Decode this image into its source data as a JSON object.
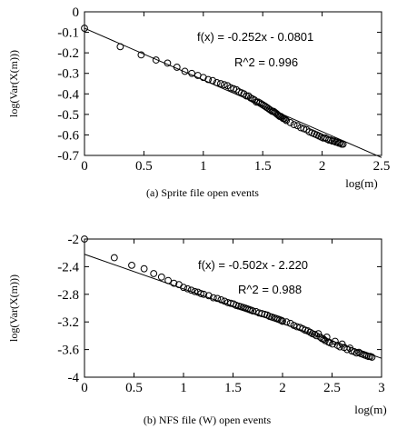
{
  "chart_data": [
    {
      "type": "scatter",
      "caption": "(a) Sprite file open events",
      "xlabel": "log(m)",
      "ylabel": "log(Var(X(m)))",
      "xlim": [
        0,
        2.5
      ],
      "ylim": [
        -0.7,
        0
      ],
      "xticks": [
        "0",
        "0.5",
        "1",
        "1.5",
        "2",
        "2.5"
      ],
      "yticks": [
        "0",
        "-0.1",
        "-0.2",
        "-0.3",
        "-0.4",
        "-0.5",
        "-0.6",
        "-0.7"
      ],
      "fit_label": "f(x) = -0.252x - 0.0801",
      "r2_label": "R^2 = 0.996",
      "fit": {
        "slope": -0.252,
        "intercept": -0.0801
      },
      "marker": "open-circle",
      "points": [
        [
          0,
          -0.08
        ],
        [
          0.301,
          -0.17
        ],
        [
          0.477,
          -0.21
        ],
        [
          0.602,
          -0.235
        ],
        [
          0.699,
          -0.25
        ],
        [
          0.778,
          -0.27
        ],
        [
          0.845,
          -0.29
        ],
        [
          0.903,
          -0.3
        ],
        [
          0.954,
          -0.31
        ],
        [
          1.0,
          -0.32
        ],
        [
          1.041,
          -0.33
        ],
        [
          1.079,
          -0.335
        ],
        [
          1.114,
          -0.345
        ],
        [
          1.146,
          -0.35
        ],
        [
          1.176,
          -0.355
        ],
        [
          1.204,
          -0.36
        ],
        [
          1.23,
          -0.37
        ],
        [
          1.255,
          -0.375
        ],
        [
          1.279,
          -0.38
        ],
        [
          1.301,
          -0.39
        ],
        [
          1.322,
          -0.395
        ],
        [
          1.342,
          -0.4
        ],
        [
          1.362,
          -0.41
        ],
        [
          1.38,
          -0.41
        ],
        [
          1.398,
          -0.42
        ],
        [
          1.415,
          -0.425
        ],
        [
          1.431,
          -0.43
        ],
        [
          1.447,
          -0.44
        ],
        [
          1.462,
          -0.44
        ],
        [
          1.477,
          -0.445
        ],
        [
          1.491,
          -0.45
        ],
        [
          1.505,
          -0.455
        ],
        [
          1.519,
          -0.46
        ],
        [
          1.531,
          -0.465
        ],
        [
          1.544,
          -0.47
        ],
        [
          1.556,
          -0.475
        ],
        [
          1.568,
          -0.48
        ],
        [
          1.58,
          -0.485
        ],
        [
          1.591,
          -0.485
        ],
        [
          1.602,
          -0.49
        ],
        [
          1.613,
          -0.495
        ],
        [
          1.623,
          -0.5
        ],
        [
          1.633,
          -0.505
        ],
        [
          1.643,
          -0.51
        ],
        [
          1.653,
          -0.51
        ],
        [
          1.663,
          -0.515
        ],
        [
          1.672,
          -0.52
        ],
        [
          1.681,
          -0.52
        ],
        [
          1.69,
          -0.525
        ],
        [
          1.699,
          -0.53
        ],
        [
          1.732,
          -0.54
        ],
        [
          1.763,
          -0.55
        ],
        [
          1.792,
          -0.555
        ],
        [
          1.82,
          -0.565
        ],
        [
          1.845,
          -0.57
        ],
        [
          1.869,
          -0.575
        ],
        [
          1.892,
          -0.585
        ],
        [
          1.914,
          -0.59
        ],
        [
          1.934,
          -0.595
        ],
        [
          1.954,
          -0.6
        ],
        [
          1.973,
          -0.605
        ],
        [
          1.991,
          -0.61
        ],
        [
          2.009,
          -0.615
        ],
        [
          2.025,
          -0.615
        ],
        [
          2.041,
          -0.62
        ],
        [
          2.057,
          -0.625
        ],
        [
          2.072,
          -0.625
        ],
        [
          2.086,
          -0.63
        ],
        [
          2.1,
          -0.63
        ],
        [
          2.114,
          -0.635
        ],
        [
          2.127,
          -0.635
        ],
        [
          2.14,
          -0.64
        ],
        [
          2.152,
          -0.64
        ],
        [
          2.164,
          -0.645
        ],
        [
          2.176,
          -0.645
        ]
      ]
    },
    {
      "type": "scatter",
      "caption": "(b) NFS file (W) open events",
      "xlabel": "log(m)",
      "ylabel": "log(Var(X(m)))",
      "xlim": [
        0,
        3
      ],
      "ylim": [
        -4,
        -2
      ],
      "xticks": [
        "0",
        "0.5",
        "1",
        "1.5",
        "2",
        "2.5",
        "3"
      ],
      "yticks": [
        "-2",
        "-2.4",
        "-2.8",
        "-3.2",
        "-3.6",
        "-4"
      ],
      "fit_label": "f(x) = -0.502x - 2.220",
      "r2_label": "R^2 = 0.988",
      "fit": {
        "slope": -0.502,
        "intercept": -2.22
      },
      "marker": "open-circle",
      "points": [
        [
          0,
          -2.0
        ],
        [
          0.301,
          -2.27
        ],
        [
          0.477,
          -2.38
        ],
        [
          0.602,
          -2.43
        ],
        [
          0.699,
          -2.5
        ],
        [
          0.778,
          -2.55
        ],
        [
          0.845,
          -2.6
        ],
        [
          0.903,
          -2.64
        ],
        [
          0.954,
          -2.66
        ],
        [
          1.0,
          -2.7
        ],
        [
          1.041,
          -2.72
        ],
        [
          1.079,
          -2.74
        ],
        [
          1.114,
          -2.76
        ],
        [
          1.146,
          -2.77
        ],
        [
          1.176,
          -2.79
        ],
        [
          1.204,
          -2.8
        ],
        [
          1.255,
          -2.82
        ],
        [
          1.301,
          -2.85
        ],
        [
          1.342,
          -2.86
        ],
        [
          1.38,
          -2.88
        ],
        [
          1.415,
          -2.9
        ],
        [
          1.447,
          -2.92
        ],
        [
          1.477,
          -2.93
        ],
        [
          1.505,
          -2.94
        ],
        [
          1.531,
          -2.96
        ],
        [
          1.556,
          -2.97
        ],
        [
          1.58,
          -2.98
        ],
        [
          1.602,
          -2.99
        ],
        [
          1.623,
          -3.0
        ],
        [
          1.643,
          -3.01
        ],
        [
          1.663,
          -3.02
        ],
        [
          1.681,
          -3.03
        ],
        [
          1.699,
          -3.04
        ],
        [
          1.732,
          -3.05
        ],
        [
          1.763,
          -3.07
        ],
        [
          1.792,
          -3.08
        ],
        [
          1.82,
          -3.09
        ],
        [
          1.845,
          -3.1
        ],
        [
          1.869,
          -3.12
        ],
        [
          1.892,
          -3.13
        ],
        [
          1.914,
          -3.14
        ],
        [
          1.934,
          -3.15
        ],
        [
          1.954,
          -3.16
        ],
        [
          1.973,
          -3.17
        ],
        [
          1.991,
          -3.18
        ],
        [
          2.0,
          -3.19
        ],
        [
          2.041,
          -3.2
        ],
        [
          2.079,
          -3.22
        ],
        [
          2.114,
          -3.25
        ],
        [
          2.146,
          -3.27
        ],
        [
          2.176,
          -3.28
        ],
        [
          2.204,
          -3.3
        ],
        [
          2.23,
          -3.32
        ],
        [
          2.255,
          -3.33
        ],
        [
          2.279,
          -3.35
        ],
        [
          2.301,
          -3.37
        ],
        [
          2.322,
          -3.38
        ],
        [
          2.342,
          -3.4
        ],
        [
          2.362,
          -3.37
        ],
        [
          2.38,
          -3.42
        ],
        [
          2.398,
          -3.44
        ],
        [
          2.415,
          -3.45
        ],
        [
          2.431,
          -3.47
        ],
        [
          2.447,
          -3.42
        ],
        [
          2.462,
          -3.49
        ],
        [
          2.477,
          -3.5
        ],
        [
          2.505,
          -3.52
        ],
        [
          2.531,
          -3.48
        ],
        [
          2.556,
          -3.54
        ],
        [
          2.58,
          -3.56
        ],
        [
          2.602,
          -3.52
        ],
        [
          2.623,
          -3.57
        ],
        [
          2.653,
          -3.6
        ],
        [
          2.681,
          -3.58
        ],
        [
          2.699,
          -3.62
        ],
        [
          2.724,
          -3.63
        ],
        [
          2.748,
          -3.65
        ],
        [
          2.771,
          -3.64
        ],
        [
          2.792,
          -3.66
        ],
        [
          2.813,
          -3.67
        ],
        [
          2.833,
          -3.68
        ],
        [
          2.851,
          -3.69
        ],
        [
          2.869,
          -3.7
        ],
        [
          2.886,
          -3.7
        ],
        [
          2.903,
          -3.71
        ]
      ]
    }
  ]
}
